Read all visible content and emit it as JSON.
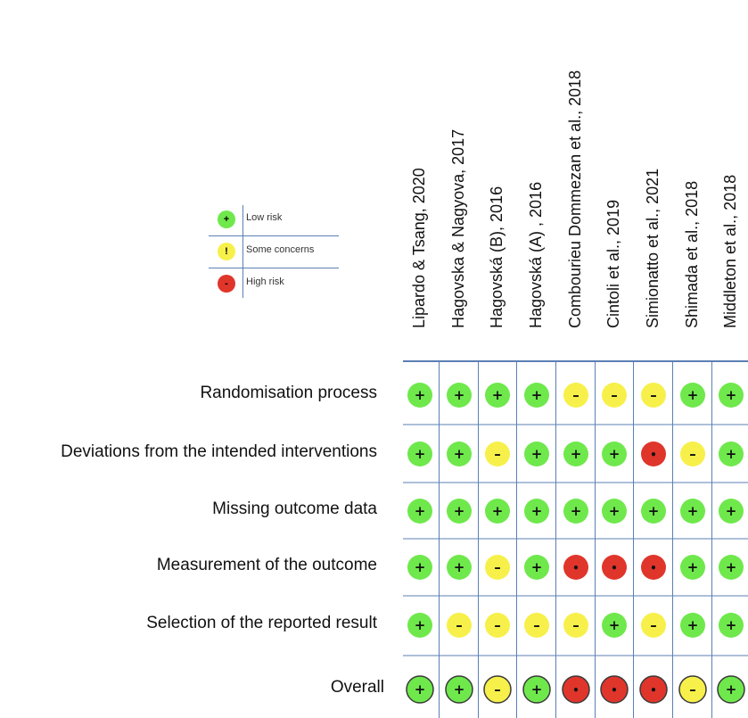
{
  "legend": {
    "items": [
      {
        "symbol": "+",
        "label": "Low risk",
        "color": "#6fe84c"
      },
      {
        "symbol": "!",
        "label": "Some concerns",
        "color": "#f7f04a"
      },
      {
        "symbol": "-",
        "label": "High risk",
        "color": "#e0352b"
      }
    ]
  },
  "chart_data": {
    "type": "table",
    "studies": [
      "Lipardo & Tsang, 2020",
      "Hagovska & Nagyova, 2017",
      "Hagovská (B), 2016",
      "Hagovská (A) , 2016",
      "Combourieu Dommezan et al., 2018",
      "Cintoli et al., 2019",
      "Simionatto et al., 2021",
      "Shimada et al., 2018",
      "Middleton et al., 2018"
    ],
    "domains": [
      "Randomisation process",
      "Deviations from the intended interventions",
      "Missing outcome data ",
      "Measurement of the outcome",
      "Selection of the reported result",
      "Overall"
    ],
    "judgements": [
      [
        "low",
        "low",
        "low",
        "low",
        "some",
        "some",
        "some",
        "low",
        "low"
      ],
      [
        "low",
        "low",
        "some",
        "low",
        "low",
        "low",
        "high",
        "some",
        "low"
      ],
      [
        "low",
        "low",
        "low",
        "low",
        "low",
        "low",
        "low",
        "low",
        "low"
      ],
      [
        "low",
        "low",
        "some",
        "low",
        "high",
        "high",
        "high",
        "low",
        "low"
      ],
      [
        "low",
        "some",
        "some",
        "some",
        "some",
        "low",
        "some",
        "low",
        "low"
      ],
      [
        "low",
        "low",
        "some",
        "low",
        "high",
        "high",
        "high",
        "some",
        "low"
      ]
    ],
    "colors": {
      "low": "#6fe84c",
      "some": "#f7f04a",
      "high": "#e0352b",
      "grid": "#5b7fb4"
    }
  }
}
